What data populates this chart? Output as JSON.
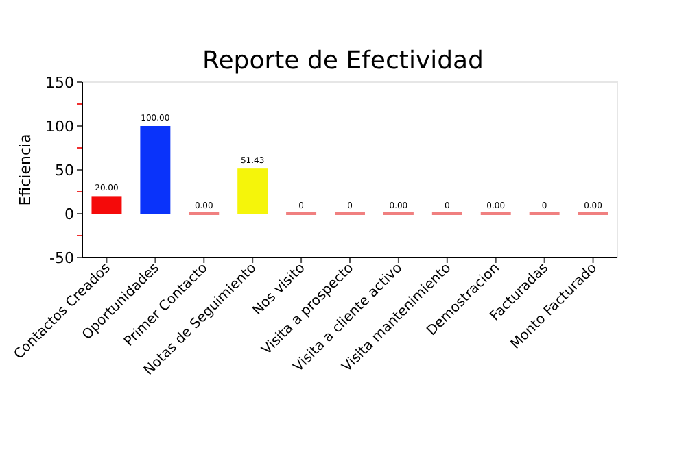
{
  "chart_data": {
    "type": "bar",
    "title": "Reporte de Efectividad",
    "ylabel": "Eficiencia",
    "categories": [
      "Contactos Creados",
      "Oportunidades",
      "Primer Contacto",
      "Notas de Seguimiento",
      "Nos visito",
      "Visita a prospecto",
      "Visita a cliente activo",
      "Visita mantenimiento",
      "Demostracion",
      "Facturadas",
      "Monto Facturado"
    ],
    "values": [
      20,
      100,
      0,
      51.43,
      0,
      0,
      0,
      0,
      0,
      0,
      0
    ],
    "colors": [
      "#f50a0a",
      "#0a33fa",
      "#f08080",
      "#f5f50a",
      "#f08080",
      "#f08080",
      "#f08080",
      "#f08080",
      "#f08080",
      "#f08080",
      "#f08080"
    ],
    "value_labels": [
      "20.00",
      "100.00",
      "0.00",
      "51.43",
      "0",
      "0",
      "0.00",
      "0",
      "0.00",
      "0",
      "0.00"
    ],
    "ylim": [
      -50,
      150
    ],
    "yticks": [
      -50,
      {
        "value": -25,
        "label": null
      },
      0,
      {
        "value": 25,
        "label": null
      },
      50,
      {
        "value": 75,
        "label": null
      },
      100,
      {
        "value": 125,
        "label": null
      },
      150
    ],
    "grid": false
  }
}
